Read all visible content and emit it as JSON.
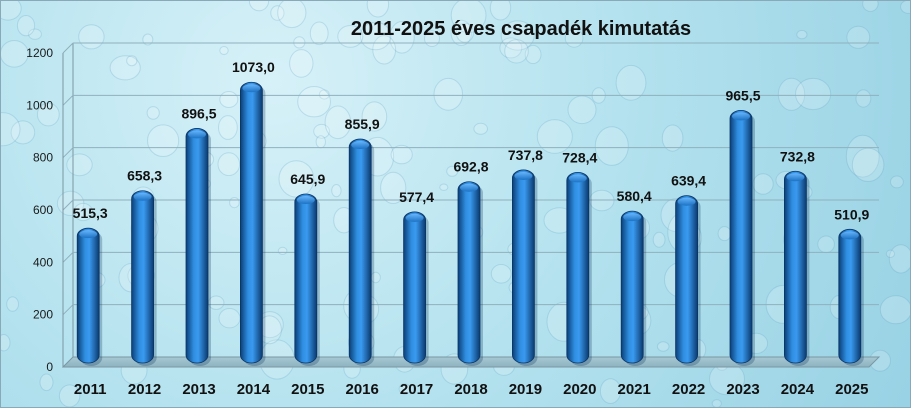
{
  "chart_data": {
    "type": "bar",
    "title": "2011-2025 éves  csapadék kimutatás",
    "categories": [
      "2011",
      "2012",
      "2013",
      "2014",
      "2015",
      "2016",
      "2017",
      "2018",
      "2019",
      "2020",
      "2021",
      "2022",
      "2023",
      "2024",
      "2025"
    ],
    "values": [
      515.3,
      658.3,
      896.5,
      1073.0,
      645.9,
      855.9,
      577.4,
      692.8,
      737.8,
      728.4,
      580.4,
      639.4,
      965.5,
      732.8,
      510.9
    ],
    "data_labels": [
      "515,3",
      "658,3",
      "896,5",
      "1073,0",
      "645,9",
      "855,9",
      "577,4",
      "692,8",
      "737,8",
      "728,4",
      "580,4",
      "639,4",
      "965,5",
      "732,8",
      "510,9"
    ],
    "y_ticks": [
      "0",
      "200",
      "400",
      "600",
      "800",
      "1000",
      "1200"
    ],
    "ylim": [
      0,
      1200
    ],
    "xlabel": "",
    "ylabel": "",
    "grid": true,
    "legend": "none",
    "bar_color": "#1a6fc0",
    "background_color": "#b6e3ef"
  }
}
